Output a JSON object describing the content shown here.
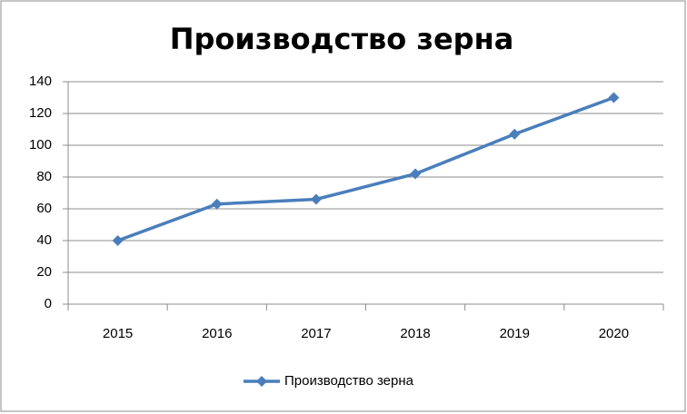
{
  "chart_data": {
    "type": "line",
    "title": "Производство зерна",
    "categories": [
      "2015",
      "2016",
      "2017",
      "2018",
      "2019",
      "2020"
    ],
    "series": [
      {
        "name": "Производство зерна",
        "color": "#4a7ebb",
        "values": [
          40,
          63,
          66,
          82,
          107,
          130
        ]
      }
    ],
    "ylim": [
      0,
      140
    ],
    "yticks": [
      0,
      20,
      40,
      60,
      80,
      100,
      120,
      140
    ],
    "grid": true,
    "legend": "bottom"
  }
}
